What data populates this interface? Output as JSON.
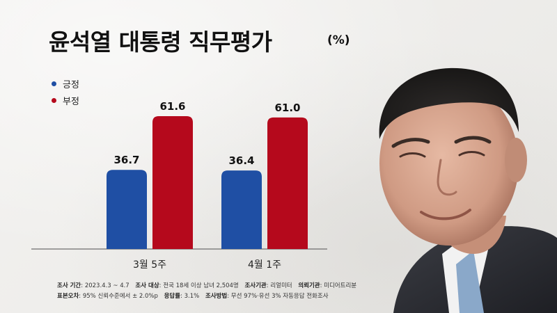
{
  "title": "윤석열 대통령 직무평가",
  "unit": "(%)",
  "colors": {
    "positive": "#1f4fa4",
    "negative": "#b5091c"
  },
  "chart_data": {
    "type": "bar",
    "categories": [
      "3월 5주",
      "4월 1주"
    ],
    "series": [
      {
        "name": "긍정",
        "values": [
          36.7,
          36.4
        ]
      },
      {
        "name": "부정",
        "values": [
          61.6,
          61.0
        ]
      }
    ],
    "title": "윤석열 대통령 직무평가",
    "legend_position": "top-left",
    "grid": false
  },
  "footnote": {
    "line1": [
      {
        "label": "조사 기간",
        "value": ": 2023.4.3 ~ 4.7"
      },
      {
        "label": "조사 대상",
        "value": ": 전국 18세 이상 남녀 2,504명"
      },
      {
        "label": "조사기관",
        "value": ": 리얼미터"
      },
      {
        "label": "의뢰기관",
        "value": ": 미디어트리뷴"
      }
    ],
    "line2": [
      {
        "label": "표본오차",
        "value": ": 95% 신뢰수준에서 ± 2.0%p"
      },
      {
        "label": "응답률",
        "value": ": 3.1%"
      },
      {
        "label": "조사방법",
        "value": ": 무선 97%·유선 3% 자동응답 전화조사"
      }
    ]
  }
}
